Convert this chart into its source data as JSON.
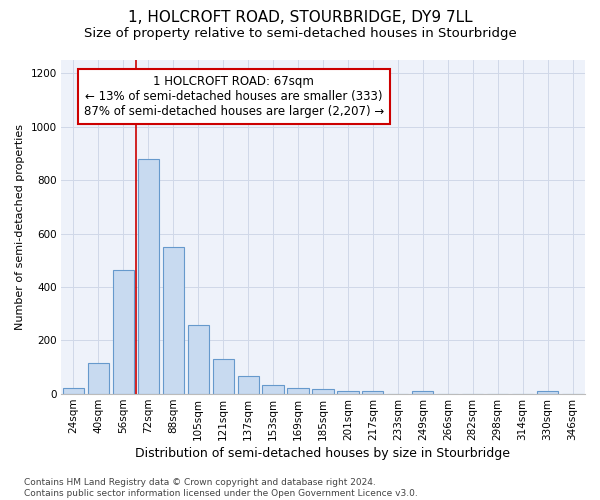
{
  "title": "1, HOLCROFT ROAD, STOURBRIDGE, DY9 7LL",
  "subtitle": "Size of property relative to semi-detached houses in Stourbridge",
  "xlabel": "Distribution of semi-detached houses by size in Stourbridge",
  "ylabel": "Number of semi-detached properties",
  "categories": [
    "24sqm",
    "40sqm",
    "56sqm",
    "72sqm",
    "88sqm",
    "105sqm",
    "121sqm",
    "137sqm",
    "153sqm",
    "169sqm",
    "185sqm",
    "201sqm",
    "217sqm",
    "233sqm",
    "249sqm",
    "266sqm",
    "282sqm",
    "298sqm",
    "314sqm",
    "330sqm",
    "346sqm"
  ],
  "values": [
    20,
    115,
    465,
    880,
    548,
    258,
    130,
    65,
    32,
    22,
    18,
    10,
    12,
    0,
    10,
    0,
    0,
    0,
    0,
    10,
    0
  ],
  "bar_color": "#c8daf0",
  "bar_edge_color": "#6699cc",
  "grid_color": "#d0d8e8",
  "background_color": "#eef2fa",
  "vline_index": 3,
  "vline_color": "#cc0000",
  "annotation_line1": "1 HOLCROFT ROAD: 67sqm",
  "annotation_line2": "← 13% of semi-detached houses are smaller (333)",
  "annotation_line3": "87% of semi-detached houses are larger (2,207) →",
  "annotation_box_facecolor": "white",
  "annotation_box_edgecolor": "#cc0000",
  "ylim": [
    0,
    1250
  ],
  "yticks": [
    0,
    200,
    400,
    600,
    800,
    1000,
    1200
  ],
  "footer_line1": "Contains HM Land Registry data © Crown copyright and database right 2024.",
  "footer_line2": "Contains public sector information licensed under the Open Government Licence v3.0.",
  "title_fontsize": 11,
  "subtitle_fontsize": 9.5,
  "xlabel_fontsize": 9,
  "ylabel_fontsize": 8,
  "tick_fontsize": 7.5,
  "annotation_fontsize": 8.5,
  "footer_fontsize": 6.5
}
